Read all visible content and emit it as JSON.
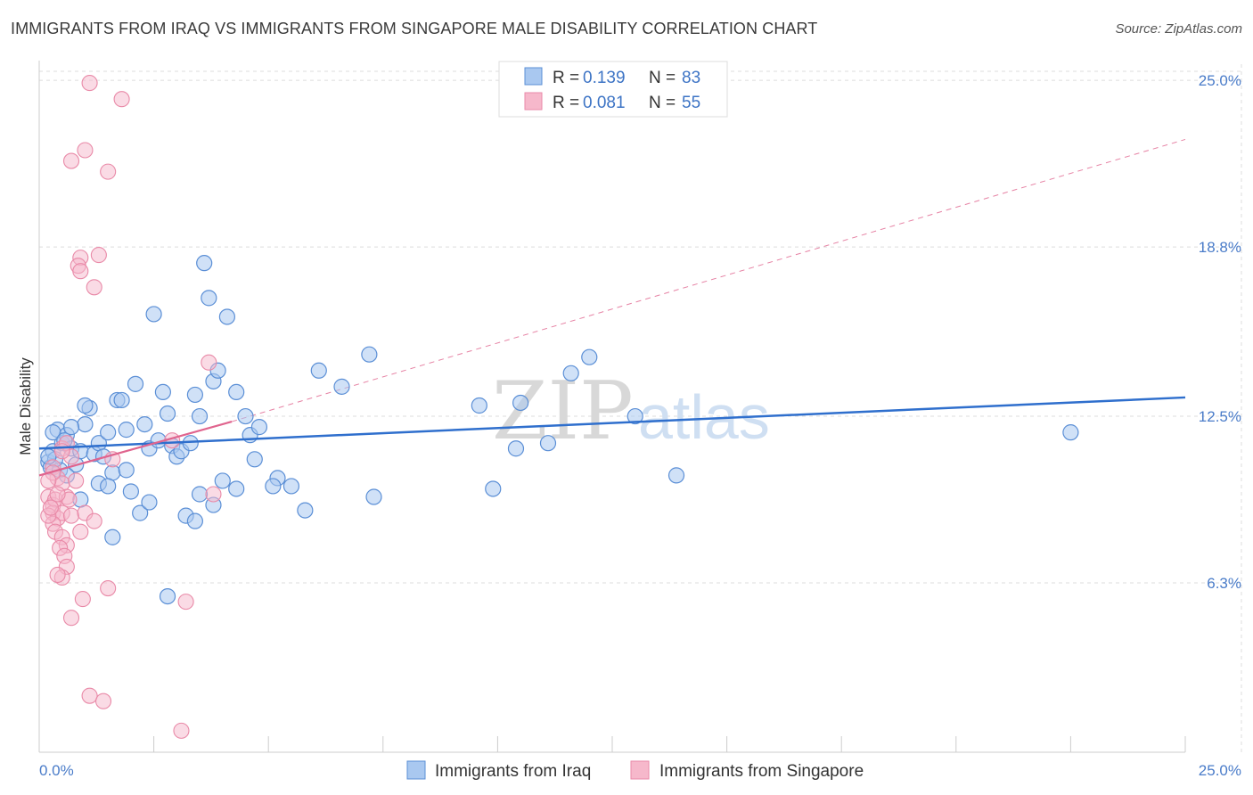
{
  "title": "IMMIGRANTS FROM IRAQ VS IMMIGRANTS FROM SINGAPORE MALE DISABILITY CORRELATION CHART",
  "source": "Source: ZipAtlas.com",
  "watermark": {
    "zip": "ZIP",
    "atlas": "atlas"
  },
  "colors": {
    "iraq_fill": "#a9c8f0",
    "iraq_stroke": "#5b8fd6",
    "iraq_line": "#2f6fcd",
    "singapore_fill": "#f6b8cb",
    "singapore_stroke": "#e98aa8",
    "singapore_line": "#e0648e",
    "tick_label": "#4a7cc9",
    "grid": "#dddddd"
  },
  "legend": {
    "rows": [
      {
        "r_label": "R =",
        "r_value": "0.139",
        "n_label": "N =",
        "n_value": "83"
      },
      {
        "r_label": "R =",
        "r_value": "0.081",
        "n_label": "N =",
        "n_value": "55"
      }
    ]
  },
  "chart_data": {
    "type": "scatter",
    "title": "IMMIGRANTS FROM IRAQ VS IMMIGRANTS FROM SINGAPORE MALE DISABILITY CORRELATION CHART",
    "xlabel": "",
    "ylabel": "Male Disability",
    "xlim": [
      0,
      25
    ],
    "ylim": [
      0,
      25.6
    ],
    "x_tick_labels": [
      "0.0%",
      "25.0%"
    ],
    "y_ticks": [
      6.3,
      12.5,
      18.8,
      25.0
    ],
    "y_tick_labels": [
      "6.3%",
      "12.5%",
      "18.8%",
      "25.0%"
    ],
    "grid": true,
    "legend_position": "bottom",
    "series": [
      {
        "name": "Immigrants from Iraq",
        "r": 0.139,
        "n": 83,
        "trend": {
          "x": [
            0,
            25
          ],
          "y": [
            11.3,
            13.2
          ],
          "dashed_extension": false
        },
        "points": [
          [
            0.2,
            10.8
          ],
          [
            0.3,
            11.2
          ],
          [
            0.25,
            10.6
          ],
          [
            0.4,
            12.0
          ],
          [
            0.5,
            11.5
          ],
          [
            0.6,
            11.8
          ],
          [
            0.7,
            11.3
          ],
          [
            0.3,
            11.9
          ],
          [
            0.8,
            10.7
          ],
          [
            0.9,
            11.2
          ],
          [
            1.0,
            12.2
          ],
          [
            1.1,
            12.8
          ],
          [
            1.2,
            11.1
          ],
          [
            1.3,
            11.5
          ],
          [
            1.4,
            11.0
          ],
          [
            0.45,
            10.5
          ],
          [
            0.55,
            11.6
          ],
          [
            0.35,
            10.9
          ],
          [
            1.5,
            11.9
          ],
          [
            1.6,
            10.4
          ],
          [
            1.7,
            13.1
          ],
          [
            1.8,
            13.1
          ],
          [
            1.9,
            12.0
          ],
          [
            2.1,
            13.7
          ],
          [
            2.3,
            12.2
          ],
          [
            2.4,
            11.3
          ],
          [
            2.5,
            16.3
          ],
          [
            2.7,
            13.4
          ],
          [
            2.8,
            12.6
          ],
          [
            2.9,
            11.4
          ],
          [
            3.0,
            11.0
          ],
          [
            3.1,
            11.2
          ],
          [
            3.3,
            11.5
          ],
          [
            3.4,
            13.3
          ],
          [
            3.5,
            12.5
          ],
          [
            3.6,
            18.2
          ],
          [
            3.7,
            16.9
          ],
          [
            3.8,
            13.8
          ],
          [
            3.9,
            14.2
          ],
          [
            4.1,
            16.2
          ],
          [
            4.3,
            13.4
          ],
          [
            4.5,
            12.5
          ],
          [
            4.6,
            11.8
          ],
          [
            4.7,
            10.9
          ],
          [
            4.8,
            12.1
          ],
          [
            5.2,
            10.2
          ],
          [
            5.5,
            9.9
          ],
          [
            5.8,
            9.0
          ],
          [
            6.1,
            14.2
          ],
          [
            6.6,
            13.6
          ],
          [
            7.2,
            14.8
          ],
          [
            7.3,
            9.5
          ],
          [
            9.6,
            12.9
          ],
          [
            9.9,
            9.8
          ],
          [
            10.4,
            11.3
          ],
          [
            10.5,
            13.0
          ],
          [
            11.1,
            11.5
          ],
          [
            11.6,
            14.1
          ],
          [
            12.0,
            14.7
          ],
          [
            13.0,
            12.5
          ],
          [
            13.9,
            10.3
          ],
          [
            22.5,
            11.9
          ],
          [
            0.6,
            10.3
          ],
          [
            0.9,
            9.4
          ],
          [
            1.3,
            10.0
          ],
          [
            1.5,
            9.9
          ],
          [
            1.6,
            8.0
          ],
          [
            2.0,
            9.7
          ],
          [
            2.2,
            8.9
          ],
          [
            2.4,
            9.3
          ],
          [
            2.8,
            5.8
          ],
          [
            3.2,
            8.8
          ],
          [
            3.4,
            8.6
          ],
          [
            3.5,
            9.6
          ],
          [
            3.8,
            9.2
          ],
          [
            4.0,
            10.1
          ],
          [
            4.3,
            9.8
          ],
          [
            5.1,
            9.9
          ],
          [
            1.9,
            10.5
          ],
          [
            2.6,
            11.6
          ],
          [
            0.7,
            12.1
          ],
          [
            1.0,
            12.9
          ],
          [
            0.2,
            11.0
          ]
        ]
      },
      {
        "name": "Immigrants from Singapore",
        "r": 0.081,
        "n": 55,
        "trend": {
          "x": [
            0,
            4.2
          ],
          "y": [
            10.3,
            12.3
          ],
          "dashed_extension": true,
          "extension_to": [
            25,
            22.8
          ]
        },
        "points": [
          [
            1.1,
            24.9
          ],
          [
            1.8,
            24.3
          ],
          [
            1.0,
            22.4
          ],
          [
            0.7,
            22.0
          ],
          [
            1.5,
            21.6
          ],
          [
            0.9,
            18.4
          ],
          [
            0.85,
            18.1
          ],
          [
            0.9,
            17.9
          ],
          [
            1.3,
            18.5
          ],
          [
            1.2,
            17.3
          ],
          [
            3.7,
            14.5
          ],
          [
            2.9,
            11.6
          ],
          [
            0.5,
            11.3
          ],
          [
            0.6,
            11.5
          ],
          [
            1.6,
            10.9
          ],
          [
            0.3,
            10.6
          ],
          [
            0.4,
            10.2
          ],
          [
            0.5,
            10.0
          ],
          [
            0.8,
            10.1
          ],
          [
            0.2,
            9.5
          ],
          [
            0.3,
            9.2
          ],
          [
            0.35,
            9.4
          ],
          [
            0.6,
            9.5
          ],
          [
            0.65,
            9.4
          ],
          [
            0.3,
            8.9
          ],
          [
            0.4,
            8.7
          ],
          [
            0.5,
            8.9
          ],
          [
            0.7,
            8.8
          ],
          [
            1.0,
            8.9
          ],
          [
            1.2,
            8.6
          ],
          [
            0.3,
            8.5
          ],
          [
            0.35,
            8.2
          ],
          [
            0.5,
            8.0
          ],
          [
            0.6,
            7.7
          ],
          [
            0.9,
            8.2
          ],
          [
            0.45,
            7.6
          ],
          [
            0.55,
            7.3
          ],
          [
            0.6,
            6.9
          ],
          [
            0.5,
            6.5
          ],
          [
            0.4,
            6.6
          ],
          [
            0.95,
            5.7
          ],
          [
            1.5,
            6.1
          ],
          [
            0.7,
            5.0
          ],
          [
            3.2,
            5.6
          ],
          [
            1.1,
            2.1
          ],
          [
            1.4,
            1.9
          ],
          [
            3.1,
            0.8
          ],
          [
            0.2,
            8.8
          ],
          [
            0.25,
            9.1
          ],
          [
            3.8,
            9.6
          ],
          [
            0.3,
            10.4
          ],
          [
            0.7,
            11.0
          ],
          [
            0.4,
            9.6
          ],
          [
            0.2,
            10.1
          ],
          [
            0.5,
            11.2
          ]
        ]
      }
    ]
  },
  "bottom_legend": [
    {
      "label": "Immigrants from Iraq"
    },
    {
      "label": "Immigrants from Singapore"
    }
  ]
}
